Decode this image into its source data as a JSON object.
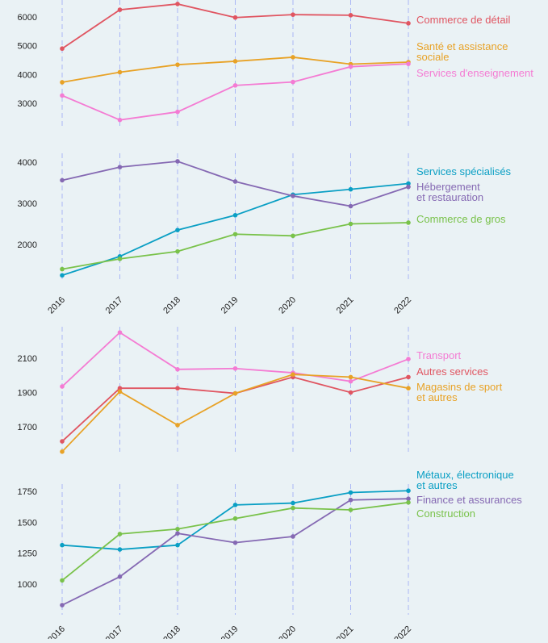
{
  "chart_data": [
    {
      "type": "line",
      "x": [
        "2016",
        "2017",
        "2018",
        "2019",
        "2020",
        "2021",
        "2022"
      ],
      "ylim": [
        2300,
        6500
      ],
      "yticks": [
        3000,
        4000,
        5000,
        6000
      ],
      "show_x_labels": false,
      "series": [
        {
          "name": "Commerce de détail",
          "color": "#e05561",
          "values": [
            4900,
            6250,
            6450,
            5980,
            6080,
            6060,
            5780
          ],
          "label_lines": [
            "Commerce de détail"
          ]
        },
        {
          "name": "Santé et assistance sociale",
          "color": "#e8a226",
          "values": [
            3730,
            4080,
            4340,
            4460,
            4600,
            4360,
            4430
          ],
          "label_lines": [
            "Santé et assistance",
            "sociale"
          ]
        },
        {
          "name": "Services d'enseignement",
          "color": "#f47bd3",
          "values": [
            3270,
            2420,
            2700,
            3620,
            3740,
            4270,
            4370
          ],
          "label_lines": [
            "Services d'enseignement"
          ]
        }
      ]
    },
    {
      "type": "line",
      "x": [
        "2016",
        "2017",
        "2018",
        "2019",
        "2020",
        "2021",
        "2022"
      ],
      "ylim": [
        1200,
        4150
      ],
      "yticks": [
        2000,
        3000,
        4000
      ],
      "show_x_labels": true,
      "series": [
        {
          "name": "Services spécialisés",
          "color": "#0a9fc4",
          "values": [
            1250,
            1710,
            2350,
            2710,
            3210,
            3340,
            3480
          ],
          "label_lines": [
            "Services spécialisés"
          ]
        },
        {
          "name": "Hébergement et restauration",
          "color": "#8569b3",
          "values": [
            3560,
            3880,
            4020,
            3530,
            3180,
            2930,
            3400
          ],
          "label_lines": [
            "Hébergement",
            "et restauration"
          ]
        },
        {
          "name": "Commerce de gros",
          "color": "#79c24a",
          "values": [
            1400,
            1650,
            1830,
            2250,
            2210,
            2500,
            2530
          ],
          "label_lines": [
            "Commerce de gros"
          ]
        }
      ]
    },
    {
      "type": "line",
      "x": [
        "2016",
        "2017",
        "2018",
        "2019",
        "2020",
        "2021",
        "2022"
      ],
      "ylim": [
        1550,
        2260
      ],
      "yticks": [
        1700,
        1900,
        2100
      ],
      "show_x_labels": false,
      "series": [
        {
          "name": "Transport",
          "color": "#f47bd3",
          "values": [
            1935,
            2250,
            2035,
            2040,
            2015,
            1965,
            2095
          ],
          "label_lines": [
            "Transport"
          ]
        },
        {
          "name": "Autres services",
          "color": "#e05561",
          "values": [
            1615,
            1925,
            1925,
            1895,
            1990,
            1900,
            1990
          ],
          "label_lines": [
            "Autres services"
          ]
        },
        {
          "name": "Magasins de sport et autres",
          "color": "#e8a226",
          "values": [
            1555,
            1905,
            1710,
            1895,
            2005,
            1990,
            1925
          ],
          "label_lines": [
            "Magasins de sport",
            "et autres"
          ]
        }
      ]
    },
    {
      "type": "line",
      "x": [
        "2016",
        "2017",
        "2018",
        "2019",
        "2020",
        "2021",
        "2022"
      ],
      "ylim": [
        830,
        1800
      ],
      "yticks": [
        1000,
        1250,
        1500,
        1750
      ],
      "show_x_labels": true,
      "series": [
        {
          "name": "Métaux, électronique et autres",
          "color": "#0a9fc4",
          "values": [
            1315,
            1280,
            1315,
            1640,
            1655,
            1740,
            1755
          ],
          "label_lines": [
            "Métaux, électronique",
            "et autres"
          ]
        },
        {
          "name": "Finance et assurances",
          "color": "#8569b3",
          "values": [
            830,
            1060,
            1410,
            1335,
            1385,
            1680,
            1690
          ],
          "label_lines": [
            "Finance et assurances"
          ]
        },
        {
          "name": "Construction",
          "color": "#79c24a",
          "values": [
            1030,
            1405,
            1445,
            1530,
            1615,
            1600,
            1660
          ],
          "label_lines": [
            "Construction"
          ]
        }
      ]
    }
  ]
}
